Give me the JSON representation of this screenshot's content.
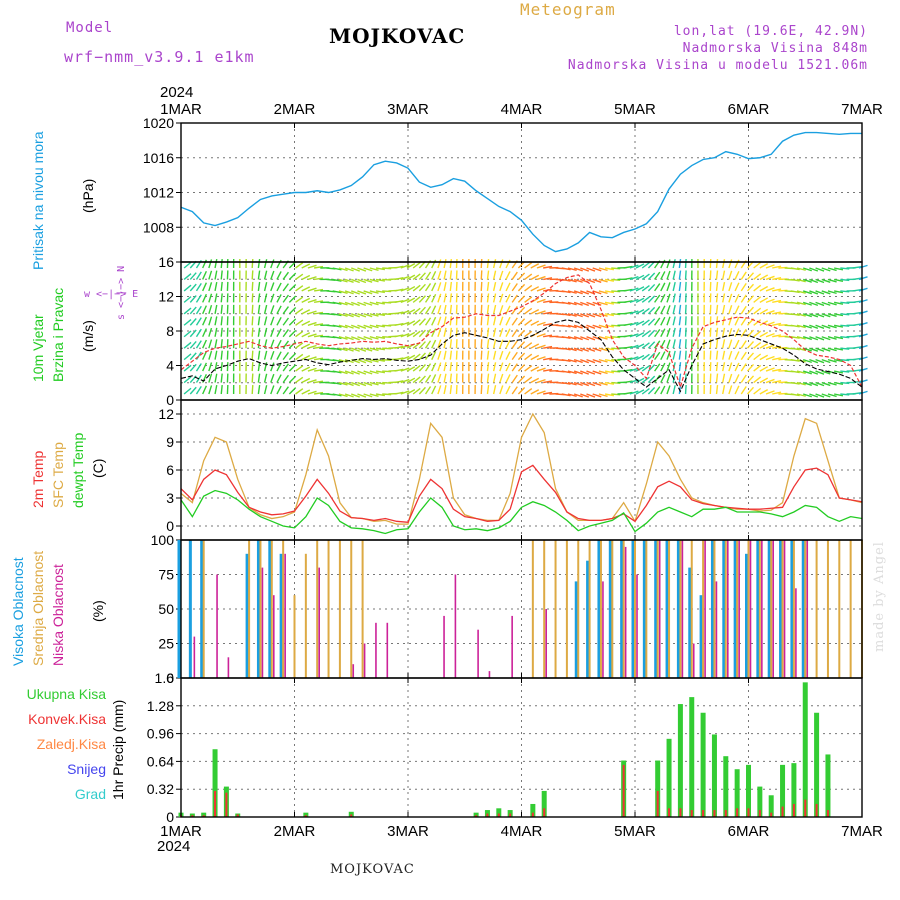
{
  "header": {
    "model_label": "Model",
    "model_name": "wrf−nmm_v3.9.1 e1km",
    "title": "MOJKOVAC",
    "chart_kind": "Meteogram",
    "coords": "lon,lat (19.6E, 42.9N)",
    "elevation": "Nadmorska Visina 848m",
    "model_elevation": "Nadmorska Visina u modelu 1521.06m",
    "year_top": "2024",
    "year_bottom": "2024",
    "footer": "MOJKOVAC",
    "credit": "made by Angel"
  },
  "colors": {
    "pressure": "#1a9fe0",
    "wind_label": "#22cc22",
    "temp2m": "#ee3333",
    "sfc": "#ddaa44",
    "dewpt": "#22cc22",
    "high_cloud": "#1a9fe0",
    "mid_cloud": "#ddaa44",
    "low_cloud": "#cc2299",
    "total_precip": "#33cc33",
    "conv_precip": "#ee3333",
    "frz_precip": "#ff8844",
    "snow": "#4444ee",
    "hail": "#33cccc",
    "model_label": "#aa44cc"
  },
  "chart_data": [
    {
      "type": "line",
      "ylabel": "(hPa)",
      "series_label": "Pritisak na nivou mora",
      "ylim": [
        1004,
        1020
      ],
      "yticks": [
        1008,
        1012,
        1016,
        1020
      ],
      "x": [
        0,
        0.1,
        0.2,
        0.3,
        0.4,
        0.5,
        0.6,
        0.7,
        0.8,
        0.9,
        1.0,
        1.1,
        1.2,
        1.3,
        1.4,
        1.5,
        1.6,
        1.7,
        1.8,
        1.9,
        2.0,
        2.1,
        2.2,
        2.3,
        2.4,
        2.5,
        2.6,
        2.7,
        2.8,
        2.9,
        3.0,
        3.1,
        3.2,
        3.3,
        3.4,
        3.5,
        3.6,
        3.7,
        3.8,
        3.9,
        4.0,
        4.1,
        4.2,
        4.3,
        4.4,
        4.5,
        4.6,
        4.7,
        4.8,
        4.9,
        5.0,
        5.1,
        5.2,
        5.3,
        5.4,
        5.5,
        5.6,
        5.7,
        5.8,
        5.9,
        6.0
      ],
      "values": [
        1010.3,
        1009.8,
        1008.5,
        1008.2,
        1008.6,
        1009.1,
        1010.2,
        1011.2,
        1011.6,
        1011.8,
        1012.0,
        1012.0,
        1012.2,
        1012.0,
        1012.3,
        1012.8,
        1013.8,
        1015.2,
        1015.6,
        1015.4,
        1014.8,
        1013.2,
        1012.6,
        1012.9,
        1013.6,
        1013.3,
        1012.2,
        1011.3,
        1010.4,
        1009.8,
        1008.8,
        1007.2,
        1005.9,
        1005.2,
        1005.5,
        1006.2,
        1007.4,
        1006.9,
        1006.8,
        1007.4,
        1007.8,
        1008.4,
        1009.8,
        1012.4,
        1014.1,
        1015.1,
        1015.8,
        1016.0,
        1016.7,
        1016.4,
        1015.9,
        1016.0,
        1016.4,
        1017.9,
        1018.6,
        1018.9,
        1018.9,
        1018.8,
        1018.7,
        1018.8,
        1018.8
      ]
    },
    {
      "type": "wind",
      "ylabel": "(m/s)",
      "series_label": [
        "10m Vjetar",
        "Brzina i Pravac"
      ],
      "compass": "w <−|−> E",
      "compass_ns": "s <−|−> N",
      "ylim": [
        0,
        16
      ],
      "yticks": [
        0,
        4,
        8,
        12,
        16
      ],
      "yticks_minor": [
        2,
        6,
        10,
        14
      ],
      "x": [
        0,
        0.1,
        0.2,
        0.3,
        0.4,
        0.5,
        0.6,
        0.7,
        0.8,
        0.9,
        1.0,
        1.1,
        1.2,
        1.3,
        1.4,
        1.5,
        1.6,
        1.7,
        1.8,
        1.9,
        2.0,
        2.1,
        2.2,
        2.3,
        2.4,
        2.5,
        2.6,
        2.7,
        2.8,
        2.9,
        3.0,
        3.1,
        3.2,
        3.3,
        3.4,
        3.5,
        3.6,
        3.7,
        3.8,
        3.9,
        4.0,
        4.1,
        4.2,
        4.3,
        4.4,
        4.5,
        4.6,
        4.7,
        4.8,
        4.9,
        5.0,
        5.1,
        5.2,
        5.3,
        5.4,
        5.5,
        5.6,
        5.7,
        5.8,
        5.9,
        6.0
      ],
      "speed": [
        2.5,
        2.8,
        2.2,
        3.6,
        4.0,
        4.5,
        4.8,
        4.3,
        4.0,
        4.3,
        4.5,
        4.7,
        4.3,
        4.1,
        4.4,
        4.6,
        4.8,
        4.7,
        4.8,
        4.6,
        4.5,
        4.7,
        5.2,
        6.5,
        7.5,
        7.8,
        7.5,
        7.2,
        6.8,
        6.8,
        7.0,
        7.5,
        8.2,
        9.0,
        9.3,
        9.0,
        8.0,
        7.0,
        5.0,
        3.5,
        2.5,
        1.5,
        2.5,
        3.5,
        1.0,
        4.0,
        6.5,
        7.0,
        7.4,
        7.6,
        7.5,
        7.0,
        6.5,
        6.0,
        5.2,
        4.2,
        3.6,
        3.3,
        3.0,
        2.5,
        1.5
      ],
      "gust": [
        3.5,
        4.5,
        5.5,
        6.0,
        6.2,
        6.5,
        6.8,
        6.3,
        6.0,
        6.2,
        6.5,
        6.8,
        6.5,
        6.3,
        6.5,
        6.6,
        6.8,
        6.7,
        6.8,
        6.5,
        6.3,
        6.6,
        7.8,
        8.5,
        9.5,
        9.6,
        10.0,
        9.8,
        9.8,
        10.3,
        10.8,
        11.5,
        12.4,
        13.5,
        14.2,
        14.5,
        13.5,
        10.5,
        7.0,
        5.0,
        4.0,
        2.5,
        6.5,
        5.5,
        1.5,
        6.0,
        8.5,
        9.0,
        9.3,
        9.6,
        9.5,
        9.0,
        8.6,
        8.0,
        7.0,
        5.8,
        5.2,
        5.0,
        4.7,
        4.0,
        1.5
      ]
    },
    {
      "type": "line",
      "ylabel": "(C)",
      "series_label": [
        "2m Temp",
        "SFC Temp",
        "dewpt Temp"
      ],
      "ylim": [
        -1.5,
        13.5
      ],
      "yticks": [
        0,
        3,
        6,
        9,
        12
      ],
      "x": [
        0,
        0.1,
        0.2,
        0.3,
        0.4,
        0.5,
        0.6,
        0.7,
        0.8,
        0.9,
        1.0,
        1.1,
        1.2,
        1.3,
        1.4,
        1.5,
        1.6,
        1.7,
        1.8,
        1.9,
        2.0,
        2.1,
        2.2,
        2.3,
        2.4,
        2.5,
        2.6,
        2.7,
        2.8,
        2.9,
        3.0,
        3.1,
        3.2,
        3.3,
        3.4,
        3.5,
        3.6,
        3.7,
        3.8,
        3.9,
        4.0,
        4.1,
        4.2,
        4.3,
        4.4,
        4.5,
        4.6,
        4.7,
        4.8,
        4.9,
        5.0,
        5.1,
        5.2,
        5.3,
        5.4,
        5.5,
        5.6,
        5.7,
        5.8,
        5.9,
        6.0
      ],
      "series": [
        {
          "name": "2m Temp",
          "values": [
            4.0,
            2.8,
            5.0,
            6.0,
            5.5,
            3.6,
            2.0,
            1.5,
            1.2,
            1.3,
            1.6,
            3.2,
            5.0,
            3.5,
            1.6,
            0.9,
            0.8,
            0.6,
            0.8,
            0.5,
            0.4,
            3.2,
            5.0,
            4.0,
            1.8,
            1.0,
            0.8,
            0.5,
            0.6,
            1.8,
            5.8,
            6.5,
            5.0,
            3.6,
            1.5,
            0.8,
            0.6,
            0.6,
            0.8,
            1.3,
            0.5,
            2.2,
            4.2,
            4.8,
            4.2,
            2.8,
            2.4,
            2.2,
            2.0,
            1.9,
            1.8,
            1.8,
            1.9,
            2.0,
            4.2,
            6.0,
            6.2,
            5.5,
            3.0,
            2.8,
            2.6
          ]
        },
        {
          "name": "SFC Temp",
          "values": [
            3.5,
            2.5,
            7.0,
            9.5,
            9.0,
            5.0,
            2.0,
            1.2,
            0.8,
            1.0,
            1.5,
            5.5,
            10.3,
            7.5,
            2.5,
            0.9,
            0.8,
            0.5,
            0.6,
            0.2,
            0.2,
            5.0,
            11.0,
            9.5,
            3.0,
            1.2,
            0.8,
            0.6,
            0.6,
            3.5,
            9.5,
            12.0,
            10.0,
            4.0,
            1.5,
            0.6,
            0.6,
            0.6,
            0.8,
            2.5,
            0.5,
            4.5,
            9.0,
            7.5,
            5.0,
            3.0,
            2.5,
            2.2,
            2.0,
            1.8,
            1.8,
            1.6,
            1.7,
            2.5,
            7.5,
            11.5,
            11.0,
            7.0,
            3.0,
            2.8,
            2.5
          ]
        },
        {
          "name": "dewpt Temp",
          "values": [
            2.8,
            1.0,
            3.2,
            3.8,
            3.5,
            2.8,
            1.8,
            1.0,
            0.5,
            0.0,
            -0.2,
            1.0,
            3.0,
            2.2,
            0.5,
            -0.2,
            -0.3,
            -0.5,
            -0.8,
            -0.4,
            -0.3,
            1.5,
            3.0,
            2.0,
            0.0,
            -0.4,
            -0.3,
            -0.5,
            -0.2,
            0.5,
            2.0,
            2.6,
            2.2,
            1.5,
            0.6,
            -0.5,
            0.0,
            0.3,
            0.6,
            1.4,
            -0.6,
            0.3,
            1.5,
            2.0,
            1.5,
            1.0,
            1.8,
            1.8,
            2.0,
            1.5,
            1.5,
            1.5,
            1.3,
            1.0,
            1.5,
            2.2,
            2.0,
            1.0,
            0.5,
            1.0,
            0.8
          ]
        }
      ]
    },
    {
      "type": "bar",
      "ylabel": "(%)",
      "series_label": [
        "Visoka Oblacnost",
        "Srednja Oblacnost",
        "Niska Oblacnost"
      ],
      "ylim": [
        0,
        100
      ],
      "yticks": [
        0,
        25,
        50,
        75,
        100
      ],
      "x": [
        0,
        0.1,
        0.2,
        0.3,
        0.4,
        0.5,
        0.6,
        0.7,
        0.8,
        0.9,
        1.0,
        1.1,
        1.2,
        1.3,
        1.4,
        1.5,
        1.6,
        1.7,
        1.8,
        1.9,
        2.0,
        2.1,
        2.2,
        2.3,
        2.4,
        2.5,
        2.6,
        2.7,
        2.8,
        2.9,
        3.0,
        3.1,
        3.2,
        3.3,
        3.4,
        3.5,
        3.6,
        3.7,
        3.8,
        3.9,
        4.0,
        4.1,
        4.2,
        4.3,
        4.4,
        4.5,
        4.6,
        4.7,
        4.8,
        4.9,
        5.0,
        5.1,
        5.2,
        5.3,
        5.4,
        5.5,
        5.6,
        5.7,
        5.8,
        5.9,
        6.0
      ],
      "series": [
        {
          "name": "Visoka Oblacnost",
          "values": [
            100,
            100,
            100,
            0,
            0,
            0,
            90,
            100,
            100,
            90,
            0,
            0,
            0,
            0,
            0,
            0,
            0,
            0,
            0,
            0,
            0,
            0,
            0,
            0,
            0,
            0,
            0,
            0,
            0,
            0,
            0,
            0,
            0,
            0,
            0,
            70,
            85,
            100,
            100,
            100,
            100,
            100,
            100,
            100,
            100,
            80,
            60,
            100,
            100,
            100,
            90,
            100,
            100,
            100,
            100,
            100,
            0,
            0,
            0,
            0,
            0
          ]
        },
        {
          "name": "Srednja Oblacnost",
          "values": [
            0,
            0,
            100,
            0,
            0,
            0,
            100,
            100,
            100,
            100,
            60,
            90,
            100,
            100,
            100,
            100,
            100,
            0,
            0,
            0,
            0,
            0,
            0,
            0,
            0,
            0,
            0,
            0,
            0,
            0,
            0,
            100,
            100,
            100,
            100,
            100,
            100,
            100,
            100,
            100,
            100,
            100,
            100,
            100,
            100,
            100,
            100,
            100,
            100,
            100,
            100,
            100,
            100,
            100,
            100,
            100,
            100,
            100,
            100,
            100,
            100
          ]
        },
        {
          "name": "Niska Oblacnost",
          "values": [
            0,
            30,
            0,
            75,
            15,
            0,
            0,
            80,
            60,
            90,
            0,
            0,
            80,
            0,
            0,
            10,
            25,
            40,
            40,
            0,
            0,
            0,
            0,
            45,
            75,
            0,
            35,
            5,
            0,
            45,
            0,
            0,
            50,
            0,
            0,
            0,
            0,
            70,
            0,
            95,
            75,
            0,
            100,
            0,
            100,
            25,
            100,
            70,
            100,
            100,
            100,
            100,
            100,
            100,
            65,
            100,
            0,
            0,
            0,
            0,
            0
          ]
        }
      ]
    },
    {
      "type": "bar",
      "ylabel": "1hr Precip (mm)",
      "series_label": [
        "Ukupna Kisa",
        "Konvek.Kisa",
        "Zaledj.Kisa",
        "Snijeg",
        "Grad"
      ],
      "ylim": [
        0,
        1.6
      ],
      "yticks": [
        0,
        0.32,
        0.64,
        0.96,
        1.28,
        1.6
      ],
      "ytick_labels": [
        "0",
        "0.32",
        "0.64",
        "0.96",
        "1.28",
        "1.6"
      ],
      "xticks": [
        "1MAR",
        "2MAR",
        "3MAR",
        "4MAR",
        "5MAR",
        "6MAR",
        "7MAR"
      ],
      "x": [
        0,
        0.1,
        0.2,
        0.3,
        0.4,
        0.5,
        0.6,
        0.7,
        0.8,
        0.9,
        1.0,
        1.1,
        1.2,
        1.3,
        1.4,
        1.5,
        1.6,
        1.7,
        1.8,
        1.9,
        2.0,
        2.1,
        2.2,
        2.3,
        2.4,
        2.5,
        2.6,
        2.7,
        2.8,
        2.9,
        3.0,
        3.1,
        3.2,
        3.3,
        3.4,
        3.5,
        3.6,
        3.7,
        3.8,
        3.9,
        4.0,
        4.1,
        4.2,
        4.3,
        4.4,
        4.5,
        4.6,
        4.7,
        4.8,
        4.9,
        5.0,
        5.1,
        5.2,
        5.3,
        5.4,
        5.5,
        5.6,
        5.7,
        5.8,
        5.9,
        6.0
      ],
      "series": [
        {
          "name": "Ukupna Kisa",
          "values": [
            0.05,
            0.04,
            0.05,
            0.78,
            0.35,
            0.04,
            0.0,
            0.0,
            0.0,
            0.0,
            0.0,
            0.05,
            0.0,
            0.0,
            0.0,
            0.06,
            0.0,
            0.0,
            0.0,
            0.0,
            0.0,
            0.0,
            0.0,
            0.0,
            0.0,
            0.0,
            0.05,
            0.08,
            0.1,
            0.08,
            0.0,
            0.15,
            0.3,
            0.0,
            0.0,
            0.0,
            0.0,
            0.0,
            0.0,
            0.65,
            0.0,
            0.0,
            0.65,
            0.9,
            1.3,
            1.38,
            1.2,
            0.95,
            0.7,
            0.55,
            0.6,
            0.35,
            0.25,
            0.6,
            0.62,
            1.55,
            1.2,
            0.72,
            0.0,
            0.0,
            0.0
          ]
        },
        {
          "name": "Konvek.Kisa",
          "values": [
            0.02,
            0.02,
            0.02,
            0.3,
            0.28,
            0.03,
            0.0,
            0.0,
            0.0,
            0.0,
            0.0,
            0.02,
            0.0,
            0.0,
            0.0,
            0.03,
            0.0,
            0.0,
            0.0,
            0.0,
            0.0,
            0.0,
            0.0,
            0.0,
            0.0,
            0.0,
            0.02,
            0.04,
            0.04,
            0.04,
            0.0,
            0.05,
            0.1,
            0.0,
            0.0,
            0.0,
            0.0,
            0.0,
            0.0,
            0.6,
            0.0,
            0.0,
            0.3,
            0.1,
            0.1,
            0.08,
            0.08,
            0.08,
            0.08,
            0.1,
            0.1,
            0.08,
            0.05,
            0.12,
            0.15,
            0.2,
            0.15,
            0.08,
            0.0,
            0.0,
            0.0
          ]
        }
      ]
    }
  ]
}
